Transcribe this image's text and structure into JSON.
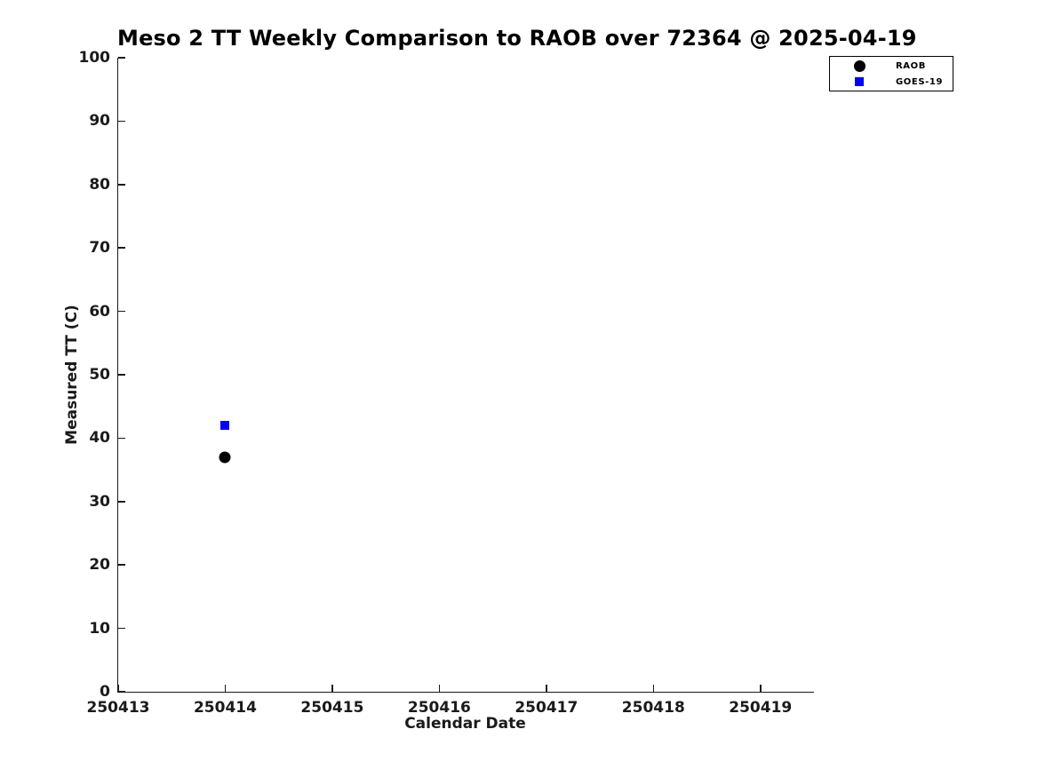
{
  "chart_data": {
    "type": "scatter",
    "title": "Meso 2 TT Weekly Comparison to RAOB over 72364 @ 2025-04-19",
    "xlabel": "Calendar Date",
    "ylabel": "Measured TT (C)",
    "xlim": [
      250413,
      250419.5
    ],
    "ylim": [
      0,
      100
    ],
    "x_ticks": [
      250413,
      250414,
      250415,
      250416,
      250417,
      250418,
      250419
    ],
    "y_ticks": [
      0,
      10,
      20,
      30,
      40,
      50,
      60,
      70,
      80,
      90,
      100
    ],
    "grid": false,
    "tick_direction": "in",
    "legend_position": "top-right-outside",
    "series": [
      {
        "name": "RAOB",
        "marker": "circle",
        "color": "#000000",
        "marker_size_px": 13,
        "points": [
          {
            "x": 250414,
            "y": 37
          }
        ]
      },
      {
        "name": "GOES-19",
        "marker": "square",
        "color": "#0000ff",
        "marker_size_px": 10,
        "points": [
          {
            "x": 250414,
            "y": 42
          }
        ]
      }
    ]
  },
  "colors": {
    "background": "#ffffff",
    "axis": "#1a1a1a",
    "tick_text": "#1a1a1a",
    "title_text": "#000000",
    "legend_border": "#000000"
  }
}
